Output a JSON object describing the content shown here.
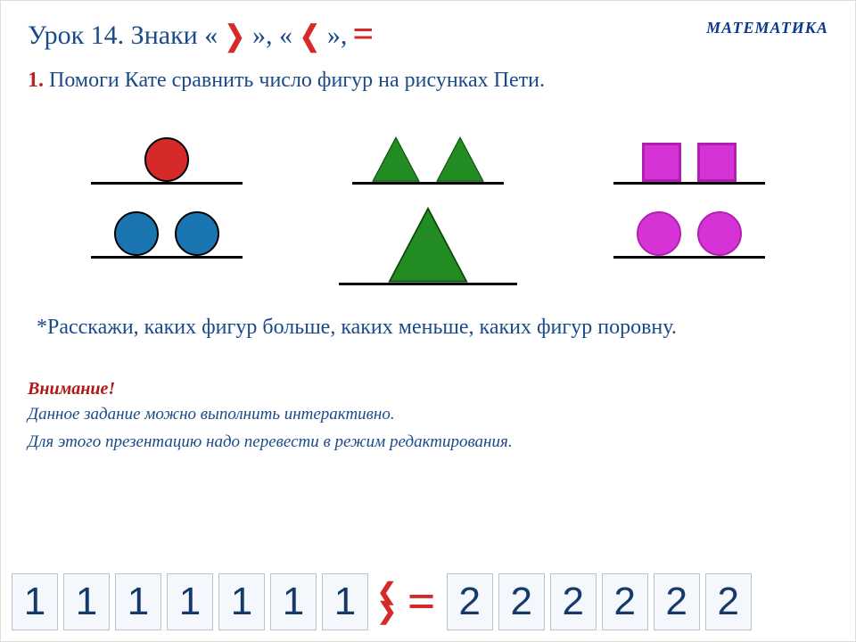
{
  "header": {
    "title_prefix": "Урок 14. Знаки «",
    "title_mid1": "», «",
    "title_mid2": "»,",
    "gt": "❯",
    "lt": "❮",
    "eq": "=",
    "subject": "МАТЕМАТИКА"
  },
  "task": {
    "num": "1.",
    "text": "Помоги Кате сравнить число фигур на рисунках Пети."
  },
  "shapes": {
    "colors": {
      "red": "#d62a2a",
      "blue": "#1a74b0",
      "green": "#228b22",
      "magenta": "#d633d6",
      "magenta_border": "#b020b0",
      "black": "#000000"
    },
    "group1": {
      "top": [
        {
          "type": "circle",
          "fill": "red"
        }
      ],
      "bottom": [
        {
          "type": "circle",
          "fill": "blue"
        },
        {
          "type": "circle",
          "fill": "blue"
        }
      ]
    },
    "group2": {
      "top": [
        {
          "type": "triangle",
          "fill": "green",
          "size": 54
        },
        {
          "type": "triangle",
          "fill": "green",
          "size": 54
        }
      ],
      "bottom": [
        {
          "type": "triangle",
          "fill": "green",
          "size": 90
        }
      ]
    },
    "group3": {
      "top": [
        {
          "type": "square",
          "fill": "magenta"
        },
        {
          "type": "square",
          "fill": "magenta"
        }
      ],
      "bottom": [
        {
          "type": "circle",
          "fill": "magenta"
        },
        {
          "type": "circle",
          "fill": "magenta"
        }
      ]
    }
  },
  "subtext": "*Расскажи, каких фигур больше, каких меньше, каких фигур поровну.",
  "warn": "Внимание!",
  "note_line1": "Данное задание можно выполнить интерактивно.",
  "note_line2": "Для этого презентацию надо перевести в режим редактирования.",
  "tiles": {
    "left": [
      "1",
      "1",
      "1",
      "1",
      "1",
      "1",
      "1"
    ],
    "mid_lt": "❮",
    "mid_gt": "❯",
    "eq": "=",
    "right": [
      "2",
      "2",
      "2",
      "2",
      "2",
      "2"
    ]
  }
}
